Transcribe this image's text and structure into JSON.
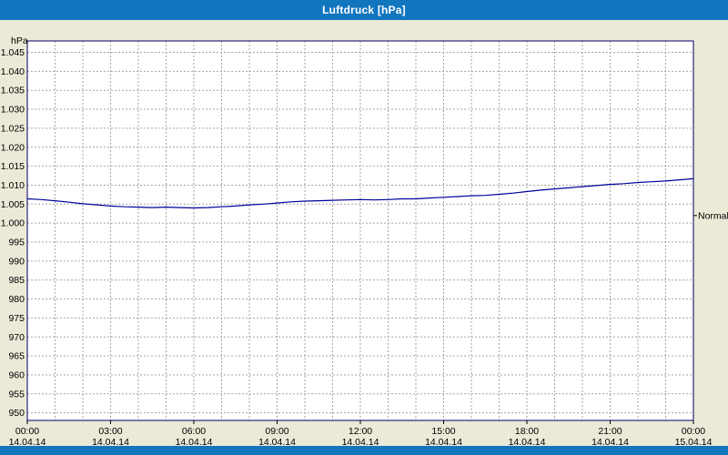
{
  "window": {
    "title": "Luftdruck [hPa]"
  },
  "colors": {
    "titlebar": "#1276bf",
    "titlebar_text": "#ffffff",
    "background": "#ece9d8",
    "plot_background": "#ffffff",
    "plot_border": "#000066",
    "grid": "#a6a6a6",
    "axis_text": "#000000",
    "line": "#00009c"
  },
  "chart_data": {
    "type": "line",
    "title": "Luftdruck [hPa]",
    "ylabel": "hPa",
    "xlabel": "",
    "ylim": [
      950,
      1045
    ],
    "ytick_step": 5,
    "grid": "dashed",
    "legend": "none",
    "x_range_hours": [
      0,
      24
    ],
    "x_minor_gridline_step_hours": 1,
    "yticks": [
      {
        "value": 1045,
        "label": "1.045"
      },
      {
        "value": 1040,
        "label": "1.040"
      },
      {
        "value": 1035,
        "label": "1.035"
      },
      {
        "value": 1030,
        "label": "1.030"
      },
      {
        "value": 1025,
        "label": "1.025"
      },
      {
        "value": 1020,
        "label": "1.020"
      },
      {
        "value": 1015,
        "label": "1.015"
      },
      {
        "value": 1010,
        "label": "1.010"
      },
      {
        "value": 1005,
        "label": "1.005"
      },
      {
        "value": 1000,
        "label": "1.000"
      },
      {
        "value": 995,
        "label": "995"
      },
      {
        "value": 990,
        "label": "990"
      },
      {
        "value": 985,
        "label": "985"
      },
      {
        "value": 980,
        "label": "980"
      },
      {
        "value": 975,
        "label": "975"
      },
      {
        "value": 970,
        "label": "970"
      },
      {
        "value": 965,
        "label": "965"
      },
      {
        "value": 960,
        "label": "960"
      },
      {
        "value": 955,
        "label": "955"
      },
      {
        "value": 950,
        "label": "950"
      }
    ],
    "xticks": [
      {
        "hour": 0,
        "time": "00:00",
        "date": "14.04.14"
      },
      {
        "hour": 3,
        "time": "03:00",
        "date": "14.04.14"
      },
      {
        "hour": 6,
        "time": "06:00",
        "date": "14.04.14"
      },
      {
        "hour": 9,
        "time": "09:00",
        "date": "14.04.14"
      },
      {
        "hour": 12,
        "time": "12:00",
        "date": "14.04.14"
      },
      {
        "hour": 15,
        "time": "15:00",
        "date": "14.04.14"
      },
      {
        "hour": 18,
        "time": "18:00",
        "date": "14.04.14"
      },
      {
        "hour": 21,
        "time": "21:00",
        "date": "14.04.14"
      },
      {
        "hour": 24,
        "time": "00:00",
        "date": "15.04.14"
      }
    ],
    "series": [
      {
        "name": "Luftdruck",
        "color": "#00009c",
        "x_hours": [
          0,
          0.5,
          1,
          1.5,
          2,
          2.5,
          3,
          3.5,
          4,
          4.5,
          5,
          5.5,
          6,
          6.5,
          7,
          7.5,
          8,
          8.5,
          9,
          9.5,
          10,
          10.5,
          11,
          11.5,
          12,
          12.5,
          13,
          13.5,
          14,
          14.5,
          15,
          15.5,
          16,
          16.5,
          17,
          17.5,
          18,
          18.5,
          19,
          19.5,
          20,
          20.5,
          21,
          21.5,
          22,
          22.5,
          23,
          23.5,
          24
        ],
        "values": [
          1006.4,
          1006.2,
          1005.9,
          1005.5,
          1005.1,
          1004.8,
          1004.5,
          1004.3,
          1004.2,
          1004.1,
          1004.2,
          1004.1,
          1004.0,
          1004.1,
          1004.3,
          1004.5,
          1004.8,
          1005.0,
          1005.3,
          1005.6,
          1005.8,
          1005.9,
          1006.0,
          1006.1,
          1006.2,
          1006.1,
          1006.2,
          1006.4,
          1006.4,
          1006.6,
          1006.8,
          1007.0,
          1007.2,
          1007.3,
          1007.6,
          1007.9,
          1008.3,
          1008.7,
          1009.0,
          1009.3,
          1009.6,
          1009.9,
          1010.2,
          1010.4,
          1010.7,
          1010.9,
          1011.1,
          1011.4,
          1011.7
        ]
      }
    ],
    "annotations": [
      {
        "label": "Normal",
        "value": 1002,
        "side": "right"
      }
    ]
  }
}
